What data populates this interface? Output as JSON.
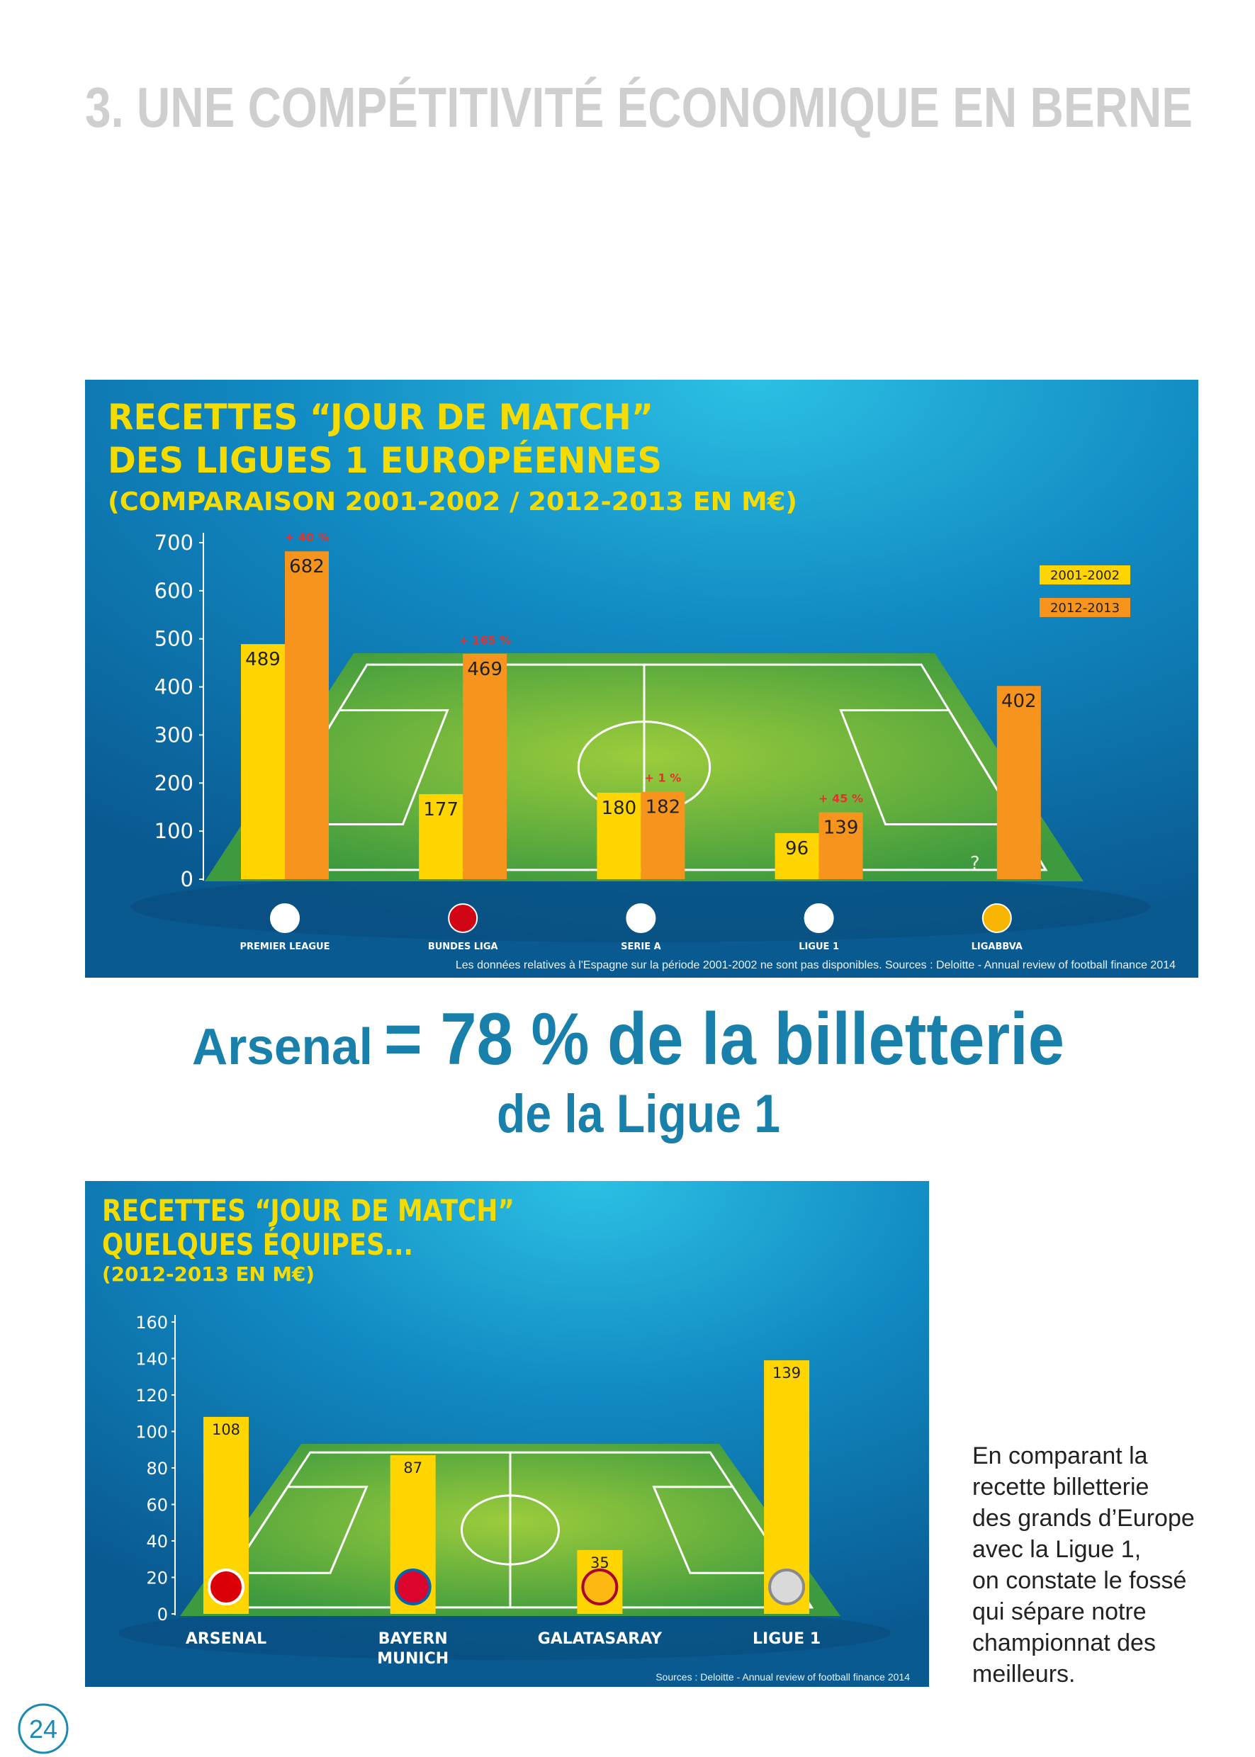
{
  "header": {
    "title": "3. UNE COMPÉTITIVITÉ ÉCONOMIQUE EN BERNE"
  },
  "chart_data": [
    {
      "type": "bar",
      "title": [
        "RECETTES “JOUR DE MATCH”",
        "DES LIGUES 1 EUROPÉENNES"
      ],
      "subtitle": "(COMPARAISON 2001-2002 / 2012-2013 EN M€)",
      "categories": [
        "PREMIER LEAGUE",
        "BUNDES LIGA",
        "SERIE A",
        "LIGUE 1",
        "LIGABBVA"
      ],
      "series": [
        {
          "name": "2001-2002",
          "color": "#ffd500",
          "values": [
            489,
            177,
            180,
            96,
            null
          ],
          "value_labels": [
            "489",
            "177",
            "180",
            "96",
            "?"
          ]
        },
        {
          "name": "2012-2013",
          "color": "#f7941d",
          "values": [
            682,
            469,
            182,
            139,
            402
          ]
        }
      ],
      "growth_labels": [
        "+ 40 %",
        "+ 165 %",
        "+ 1 %",
        "+ 45 %",
        null
      ],
      "ylim": [
        0,
        700
      ],
      "yticks": [
        0,
        100,
        200,
        300,
        400,
        500,
        600,
        700
      ],
      "legend": "top-right",
      "footnote": "Les données relatives à l'Espagne sur la période 2001-2002 ne sont pas disponibles. Sources : Deloitte - Annual review of football finance 2014"
    },
    {
      "type": "bar",
      "title": [
        "RECETTES “JOUR DE MATCH”",
        "QUELQUES ÉQUIPES..."
      ],
      "subtitle": "(2012-2013 EN M€)",
      "categories": [
        "ARSENAL",
        "BAYERN MUNICH",
        "GALATASARAY",
        "LIGUE 1"
      ],
      "values": [
        108,
        87,
        35,
        139
      ],
      "color": "#ffd500",
      "ylim": [
        0,
        160
      ],
      "yticks": [
        0,
        20,
        40,
        60,
        80,
        100,
        120,
        140,
        160
      ],
      "footnote": "Sources : Deloitte - Annual review of football finance 2014"
    }
  ],
  "headline": {
    "lead": "Arsenal",
    "main": "= 78 % de la billetterie",
    "line2": "de la Ligue 1"
  },
  "body_text": [
    "En comparant la",
    "recette billetterie",
    "des grands d’Europe",
    "avec la Ligue 1,",
    "on constate le fossé",
    "qui sépare notre",
    "championnat des",
    "meilleurs."
  ],
  "page_number": "24"
}
